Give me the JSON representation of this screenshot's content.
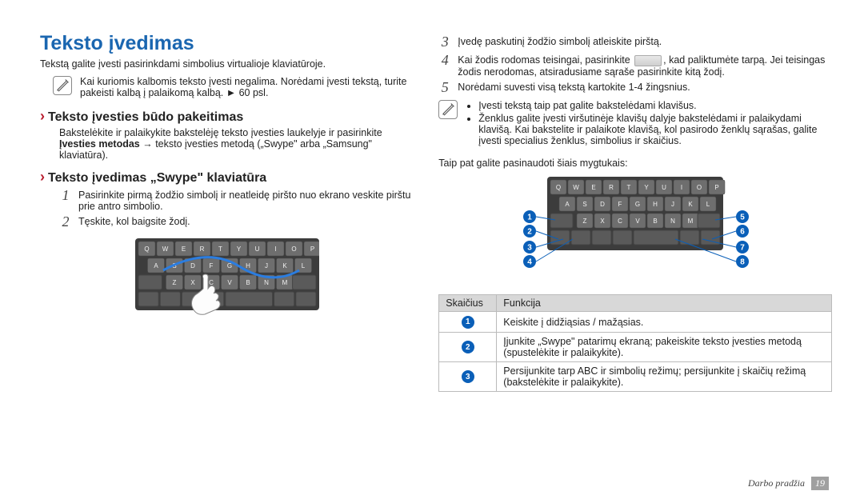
{
  "colors": {
    "title": "#1a66b0",
    "chevron": "#b91d2f",
    "circle": "#0a5fb8",
    "footer_badge": "#a0a0a0",
    "table_header_bg": "#d8d8d8",
    "table_border": "#bbbbbb",
    "key_face": "#6e6e6e",
    "key_edge": "#4a4a4a",
    "kbd_bg": "#3c3c3c"
  },
  "title": "Teksto įvedimas",
  "intro": "Tekstą galite įvesti pasirinkdami simbolius virtualioje klaviatūroje.",
  "note1": "Kai kuriomis kalbomis teksto įvesti negalima. Norėdami įvesti tekstą, turite pakeisti kalbą į palaikomą kalbą. ► 60 psl.",
  "subhead1": "Teksto įvesties būdo pakeitimas",
  "para1_a": "Bakstelėkite ir palaikykite bakstelėję teksto įvesties laukelyje ir pasirinkite ",
  "para1_bold": "Įvesties metodas",
  "para1_b": " → teksto įvesties metodą („Swype\" arba „Samsung\" klaviatūra).",
  "subhead2": "Teksto įvedimas „Swype\" klaviatūra",
  "stepsL": [
    "Pasirinkite pirmą žodžio simbolį ir neatleidę piršto nuo ekrano veskite pirštu prie antro simbolio.",
    "Tęskite, kol baigsite žodį."
  ],
  "stepsR": [
    "Įvedę paskutinį žodžio simbolį atleiskite pirštą.",
    "",
    "Norėdami suvesti visą tekstą kartokite 1-4 žingsnius."
  ],
  "step4_a": "Kai žodis rodomas teisingai, pasirinkite ",
  "step4_b": ", kad paliktumėte tarpą. Jei teisingas žodis nerodomas, atsiradusiame sąraše pasirinkite kitą žodį.",
  "note2_items": [
    "Įvesti tekstą taip pat galite bakstelėdami klavišus.",
    "Ženklus galite įvesti viršutinėje klavišų dalyje bakstelėdami ir palaikydami klavišą. Kai bakstelite ir palaikote klavišą, kol pasirodo ženklų sąrašas, galite įvesti specialius ženklus, simbolius ir skaičius."
  ],
  "below_text": "Taip pat galite pasinaudoti šiais mygtukais:",
  "keyboard": {
    "row1": [
      "Q",
      "W",
      "E",
      "R",
      "T",
      "Y",
      "U",
      "I",
      "O",
      "P"
    ],
    "row2": [
      "A",
      "S",
      "D",
      "F",
      "G",
      "H",
      "J",
      "K",
      "L"
    ],
    "row3_mid": [
      "Z",
      "X",
      "C",
      "V",
      "B",
      "N",
      "M"
    ]
  },
  "callouts": [
    "1",
    "2",
    "3",
    "4",
    "5",
    "6",
    "7",
    "8"
  ],
  "table": {
    "headers": [
      "Skaičius",
      "Funkcija"
    ],
    "rows": [
      {
        "n": "1",
        "f": "Keiskite į didžiąsias / mažąsias."
      },
      {
        "n": "2",
        "f": "Įjunkite „Swype\" patarimų ekraną; pakeiskite teksto įvesties metodą (spustelėkite ir palaikykite)."
      },
      {
        "n": "3",
        "f": "Persijunkite tarp ABC ir simbolių režimų; persijunkite į skaičių režimą (bakstelėkite ir palaikykite)."
      }
    ]
  },
  "footer": {
    "section": "Darbo pradžia",
    "page": "19"
  }
}
